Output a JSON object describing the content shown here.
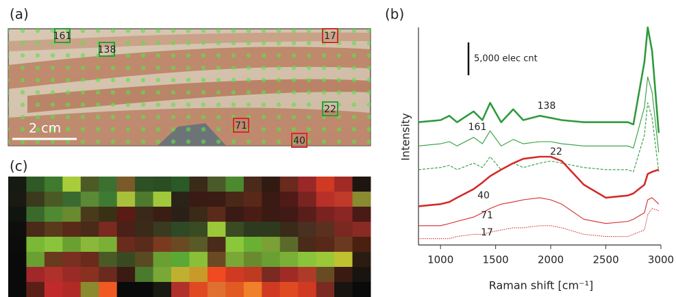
{
  "panel_labels": [
    "(a)",
    "(b)",
    "(c)"
  ],
  "photo": {
    "scale_label": "2 cm",
    "markers": [
      {
        "label": "161",
        "color": "#2e9a3c"
      },
      {
        "label": "138",
        "color": "#2e9a3c"
      },
      {
        "label": "17",
        "color": "#d42a2a"
      },
      {
        "label": "22",
        "color": "#2e9a3c"
      },
      {
        "label": "71",
        "color": "#d42a2a"
      },
      {
        "label": "40",
        "color": "#d42a2a"
      }
    ]
  },
  "heatmap": {
    "colors": [
      [
        "#151a12",
        "#2f5a25",
        "#3f7a2e",
        "#a9cc3a",
        "#4d5a26",
        "#3c7030",
        "#7a5a28",
        "#2d5025",
        "#2a4d24",
        "#2a5a28",
        "#3a2a18",
        "#4a5a28",
        "#4c8a30",
        "#4a2a1a",
        "#301a12",
        "#6a2a1e",
        "#9a2828",
        "#d03a22",
        "#a02a26",
        "#1e1410"
      ],
      [
        "#1a1a12",
        "#3a3a1c",
        "#4a5a25",
        "#3a6a30",
        "#5a8a35",
        "#3f7a33",
        "#a8c03a",
        "#4e7a2e",
        "#a0c83a",
        "#2a2418",
        "#3a1a14",
        "#3a1c14",
        "#4a2818",
        "#5a2818",
        "#3a1a12",
        "#501a16",
        "#7a2422",
        "#b83028",
        "#c03a2a",
        "#8a8a30"
      ],
      [
        "#101510",
        "#3a6a2a",
        "#4f8a33",
        "#6a8a30",
        "#4a3a1c",
        "#3a3015",
        "#5a1a16",
        "#3a2818",
        "#3a1e14",
        "#2a2018",
        "#3a2a18",
        "#5a2a1a",
        "#3a1a14",
        "#4a1c16",
        "#3a1a12",
        "#401a16",
        "#5a1e1a",
        "#7a2220",
        "#8a2624",
        "#4a1a16"
      ],
      [
        "#0e0e0c",
        "#4a2a18",
        "#5a3a1c",
        "#5a2a18",
        "#4a2a18",
        "#7a2a20",
        "#4a2018",
        "#3a2a18",
        "#3a3a1e",
        "#2e4a24",
        "#3a4a22",
        "#9ac838",
        "#3a4a22",
        "#2e3a1e",
        "#2e3a1e",
        "#3a2a18",
        "#4a3020",
        "#5a3020",
        "#7a2820",
        "#8a2a24"
      ],
      [
        "#0c0c0a",
        "#7ab836",
        "#8ac43a",
        "#6aa032",
        "#8ab838",
        "#7ab036",
        "#6a2a1c",
        "#5a2a1a",
        "#7a3a20",
        "#6a4a22",
        "#5a5a28",
        "#4a2a18",
        "#8ac83a",
        "#6ab033",
        "#7aa036",
        "#5a6a2a",
        "#4a2a18",
        "#5a2818",
        "#6a3a20",
        "#4a2010"
      ],
      [
        "#0a0a0a",
        "#6aa032",
        "#6a3a1e",
        "#7a3020",
        "#6a2a1c",
        "#4a5a26",
        "#3a4a20",
        "#5a4a22",
        "#6aa032",
        "#5aa836",
        "#8ac038",
        "#6a4a22",
        "#7aa836",
        "#6a8a30",
        "#6aa032",
        "#7ab036",
        "#8ac43a",
        "#9ac838",
        "#c0c030",
        "#2a1c10"
      ],
      [
        "#0a0a0a",
        "#a0282a",
        "#b0302a",
        "#9a2a26",
        "#8a3020",
        "#6a2a1e",
        "#3a1a12",
        "#4a7a2e",
        "#7aa836",
        "#c0b030",
        "#c89a2a",
        "#f04a22",
        "#d03a22",
        "#c03a22",
        "#7a2a20",
        "#a02a26",
        "#b03a28",
        "#6a4a22",
        "#3a1a12",
        "#1a1410"
      ],
      [
        "#0a0a0a",
        "#5a2018",
        "#c02a2a",
        "#b02a26",
        "#8a8a30",
        "#f05a22",
        "#0a0a0a",
        "#0a0a0a",
        "#1a1a12",
        "#b0302a",
        "#e04a22",
        "#e07030",
        "#e05a22",
        "#f0802a",
        "#d03a22",
        "#e04a22",
        "#d03a22",
        "#7a2a20",
        "#1a1410",
        "#0a0a0a"
      ]
    ]
  },
  "chart_data": {
    "type": "line",
    "x_label": "Raman shift [cm⁻¹]",
    "y_label": "Intensity",
    "scale_bar_label": "5,000 elec cnt",
    "xlim": [
      800,
      3000
    ],
    "xticks": [
      1000,
      1500,
      2000,
      2500,
      3000
    ],
    "ylim": [
      0,
      100
    ],
    "x": [
      800,
      1000,
      1080,
      1150,
      1300,
      1380,
      1450,
      1550,
      1660,
      1750,
      1900,
      2000,
      2100,
      2300,
      2500,
      2700,
      2750,
      2850,
      2880,
      2920,
      2980
    ],
    "series": [
      {
        "name": "138",
        "color": "#2e9a3c",
        "linestyle": "bold",
        "values": [
          56,
          57,
          59,
          56,
          61,
          57,
          65,
          56,
          62,
          57,
          59,
          58,
          57,
          56,
          56,
          56,
          55,
          84,
          100,
          89,
          51
        ]
      },
      {
        "name": "161",
        "color": "#2e9a3c",
        "linestyle": "solid",
        "values": [
          45,
          46,
          47,
          45,
          49,
          46,
          52,
          45,
          48,
          46,
          47,
          47,
          46,
          45,
          45,
          45,
          44,
          63,
          77,
          70,
          42
        ]
      },
      {
        "name": "22",
        "color": "#2e9a3c",
        "linestyle": "dashed",
        "values": [
          34,
          35,
          36,
          34,
          37,
          35,
          40,
          34,
          37,
          35,
          37,
          38,
          37,
          35,
          34,
          34,
          33,
          50,
          65,
          58,
          33
        ]
      },
      {
        "name": "40",
        "color": "#d42a2a",
        "linestyle": "bold",
        "values": [
          17,
          18,
          19,
          21,
          25,
          28,
          31,
          34,
          37,
          39,
          40,
          40,
          38,
          27,
          21,
          22,
          23,
          27,
          32,
          33,
          34
        ]
      },
      {
        "name": "71",
        "color": "#d42a2a",
        "linestyle": "solid",
        "values": [
          8,
          8,
          9,
          10,
          12,
          14,
          16,
          18,
          19,
          20,
          21,
          20,
          18,
          11,
          9,
          10,
          11,
          14,
          20,
          21,
          18
        ]
      },
      {
        "name": "17",
        "color": "#d42a2a",
        "linestyle": "dotted",
        "values": [
          2,
          2,
          2,
          3,
          4,
          4,
          5,
          6,
          7,
          7,
          8,
          8,
          7,
          4,
          3,
          3,
          4,
          6,
          13,
          16,
          15
        ]
      }
    ]
  }
}
